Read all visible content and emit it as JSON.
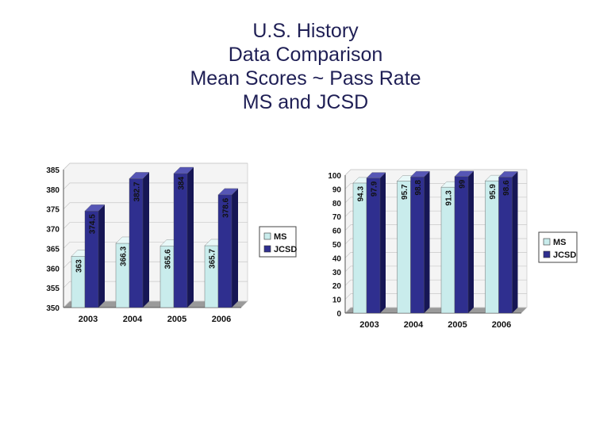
{
  "title": {
    "lines": [
      "U.S. History",
      "Data Comparison",
      "Mean Scores ~ Pass Rate",
      "MS and JCSD"
    ]
  },
  "colors": {
    "ms_front": "#c9ecec",
    "ms_side": "#8fb6b6",
    "ms_top": "#e8f8f8",
    "jcsd_front": "#2f2f8f",
    "jcsd_side": "#161655",
    "jcsd_top": "#5656b5",
    "wall": "#f4f4f4",
    "floor": "#9a9a9a"
  },
  "chart_data": [
    {
      "type": "bar",
      "title": "Mean Scores",
      "categories": [
        "2003",
        "2004",
        "2005",
        "2006"
      ],
      "series": [
        {
          "name": "MS",
          "values": [
            363,
            366.3,
            365.6,
            365.7
          ],
          "labels": [
            "363",
            "366.3",
            "365.6",
            "365.7"
          ]
        },
        {
          "name": "JCSD",
          "values": [
            374.5,
            382.7,
            384,
            378.6
          ],
          "labels": [
            "374.5",
            "382.7",
            "384",
            "378.6"
          ]
        }
      ],
      "ylim": [
        350,
        385
      ],
      "yticks": [
        "385",
        "380",
        "375",
        "370",
        "365",
        "360",
        "355",
        "350"
      ],
      "xlabel": "",
      "ylabel": "",
      "legend": "right"
    },
    {
      "type": "bar",
      "title": "Pass Rate",
      "categories": [
        "2003",
        "2004",
        "2005",
        "2006"
      ],
      "series": [
        {
          "name": "MS",
          "values": [
            94.3,
            95.7,
            91.3,
            95.9
          ],
          "labels": [
            "94.3",
            "95.7",
            "91.3",
            "95.9"
          ]
        },
        {
          "name": "JCSD",
          "values": [
            97.9,
            98.8,
            99,
            98.6
          ],
          "labels": [
            "97.9",
            "98.8",
            "99",
            "98.6"
          ]
        }
      ],
      "ylim": [
        0,
        100
      ],
      "yticks": [
        "100",
        "90",
        "80",
        "70",
        "60",
        "50",
        "40",
        "30",
        "20",
        "10",
        "0"
      ],
      "xlabel": "",
      "ylabel": "",
      "legend": "right"
    }
  ]
}
